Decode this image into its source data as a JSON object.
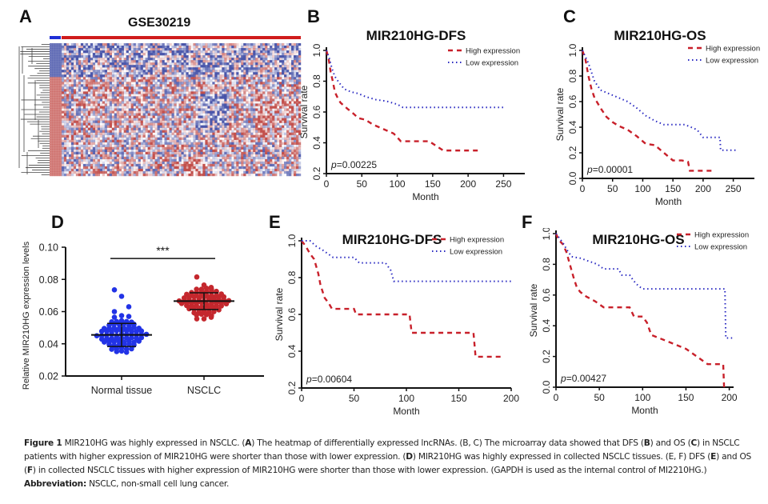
{
  "panels": {
    "A": {
      "label": "A",
      "title": "GSE30219",
      "legend_bar": {
        "normal_color": "#1f2fd6",
        "tumor_color": "#d01c1c"
      }
    },
    "B": {
      "label": "B"
    },
    "C": {
      "label": "C"
    },
    "D": {
      "label": "D"
    },
    "E": {
      "label": "E"
    },
    "F": {
      "label": "F"
    }
  },
  "colors": {
    "high": "#c8202a",
    "low": "#2b2bc2",
    "normal_dots": "#2233e6",
    "nsclc_dots": "#c4272d"
  },
  "chart_data": [
    {
      "id": "A",
      "type": "heatmap",
      "title": "GSE30219",
      "description": "Heatmap of differentially expressed lncRNAs with row dendrogram; group bar: normal (blue, left) vs tumor (red)",
      "colorscale": [
        "#2b3a9c",
        "#ffffff",
        "#b8322e"
      ]
    },
    {
      "id": "B",
      "type": "line",
      "title": "MIR210HG-DFS",
      "xlabel": "Month",
      "ylabel": "Survival rate",
      "xlim": [
        0,
        280
      ],
      "ylim": [
        0.2,
        1.0
      ],
      "xticks": [
        0,
        50,
        100,
        150,
        200,
        250
      ],
      "yticks": [
        0.2,
        0.4,
        0.6,
        0.8,
        1.0
      ],
      "ytick_labels": [
        "0.2",
        "0.4",
        "0.6",
        "0.8",
        "1.0"
      ],
      "legend": [
        "High expression",
        "Low expression"
      ],
      "legend_position": "top-right",
      "annotation": "p=0.00225",
      "series": [
        {
          "name": "High expression",
          "style": "dashed",
          "x": [
            0,
            3,
            6,
            9,
            12,
            16,
            20,
            25,
            30,
            38,
            45,
            55,
            65,
            75,
            85,
            95,
            105,
            125,
            145,
            165,
            218
          ],
          "y": [
            1.0,
            0.95,
            0.86,
            0.8,
            0.73,
            0.69,
            0.66,
            0.64,
            0.62,
            0.59,
            0.56,
            0.55,
            0.52,
            0.5,
            0.48,
            0.46,
            0.41,
            0.41,
            0.41,
            0.35,
            0.35
          ]
        },
        {
          "name": "Low expression",
          "style": "dotted",
          "x": [
            0,
            4,
            8,
            12,
            18,
            25,
            35,
            45,
            55,
            70,
            85,
            100,
            108,
            150,
            252
          ],
          "y": [
            1.0,
            0.95,
            0.88,
            0.83,
            0.79,
            0.75,
            0.73,
            0.72,
            0.7,
            0.68,
            0.67,
            0.65,
            0.63,
            0.63,
            0.63
          ]
        }
      ]
    },
    {
      "id": "C",
      "type": "line",
      "title": "MIR210HG-OS",
      "xlabel": "Month",
      "ylabel": "Survival rate",
      "xlim": [
        0,
        285
      ],
      "ylim": [
        0.0,
        1.0
      ],
      "xticks": [
        0,
        50,
        100,
        150,
        200,
        250
      ],
      "yticks": [
        0.0,
        0.2,
        0.4,
        0.6,
        0.8,
        1.0
      ],
      "ytick_labels": [
        "0.0",
        "0.2",
        "0.4",
        "0.6",
        "0.8",
        "1.0"
      ],
      "legend": [
        "High expression",
        "Low expression"
      ],
      "legend_position": "top-right",
      "annotation": "p=0.00001",
      "series": [
        {
          "name": "High expression",
          "style": "dashed",
          "x": [
            0,
            5,
            10,
            15,
            20,
            30,
            40,
            50,
            60,
            75,
            90,
            105,
            120,
            135,
            150,
            165,
            175,
            178,
            218
          ],
          "y": [
            1.0,
            0.93,
            0.8,
            0.7,
            0.63,
            0.55,
            0.48,
            0.44,
            0.41,
            0.38,
            0.33,
            0.27,
            0.26,
            0.2,
            0.14,
            0.14,
            0.13,
            0.06,
            0.06
          ]
        },
        {
          "name": "Low expression",
          "style": "dotted",
          "x": [
            0,
            5,
            10,
            20,
            30,
            45,
            60,
            75,
            90,
            105,
            120,
            135,
            150,
            170,
            190,
            200,
            228,
            229,
            255
          ],
          "y": [
            1.0,
            0.95,
            0.9,
            0.76,
            0.69,
            0.66,
            0.63,
            0.6,
            0.55,
            0.49,
            0.45,
            0.42,
            0.42,
            0.42,
            0.38,
            0.32,
            0.32,
            0.22,
            0.22
          ]
        }
      ]
    },
    {
      "id": "D",
      "type": "scatter",
      "title": "",
      "xlabel": "",
      "ylabel": "Relative MIR210HG expression levels",
      "categories": [
        "Normal tissue",
        "NSCLC"
      ],
      "ylim": [
        0.02,
        0.1
      ],
      "yticks": [
        0.02,
        0.04,
        0.06,
        0.08,
        0.1
      ],
      "ytick_labels": [
        "0.02",
        "0.04",
        "0.06",
        "0.08",
        "0.10"
      ],
      "annotation": "***",
      "series": [
        {
          "name": "Normal tissue",
          "mean": 0.0455,
          "sd": 0.0072
        },
        {
          "name": "NSCLC",
          "mean": 0.0665,
          "sd": 0.0052
        }
      ]
    },
    {
      "id": "E",
      "type": "line",
      "title": "MIR210HG-DFS",
      "xlabel": "Month",
      "ylabel": "Survival rate",
      "xlim": [
        0,
        200
      ],
      "ylim": [
        0.2,
        1.0
      ],
      "xticks": [
        0,
        50,
        100,
        150,
        200
      ],
      "yticks": [
        0.2,
        0.4,
        0.6,
        0.8,
        1.0
      ],
      "ytick_labels": [
        "0.2",
        "0.4",
        "0.6",
        "0.8",
        "1.0"
      ],
      "legend": [
        "High expression",
        "Low expression"
      ],
      "legend_position": "top-right",
      "annotation": "p=0.00604",
      "series": [
        {
          "name": "High expression",
          "style": "dashed",
          "x": [
            0,
            4,
            8,
            12,
            16,
            18,
            22,
            26,
            29,
            50,
            52,
            103,
            105,
            164,
            166,
            193
          ],
          "y": [
            1.0,
            0.97,
            0.93,
            0.9,
            0.82,
            0.76,
            0.69,
            0.66,
            0.63,
            0.63,
            0.6,
            0.6,
            0.5,
            0.5,
            0.37,
            0.37
          ]
        },
        {
          "name": "Low expression",
          "style": "dotted",
          "x": [
            0,
            8,
            14,
            20,
            25,
            30,
            50,
            55,
            80,
            85,
            88,
            200
          ],
          "y": [
            1.0,
            1.0,
            0.97,
            0.95,
            0.93,
            0.91,
            0.91,
            0.88,
            0.88,
            0.84,
            0.78,
            0.78
          ]
        }
      ]
    },
    {
      "id": "F",
      "type": "line",
      "title": "MIR210HG-OS",
      "xlabel": "Month",
      "ylabel": "Survival rate",
      "xlim": [
        0,
        205
      ],
      "ylim": [
        0.0,
        1.0
      ],
      "xticks": [
        0,
        50,
        100,
        150,
        200
      ],
      "yticks": [
        0.0,
        0.2,
        0.4,
        0.6,
        0.8,
        1.0
      ],
      "ytick_labels": [
        "0.0",
        "0.2",
        "0.4",
        "0.6",
        "0.8",
        "1.0"
      ],
      "legend": [
        "High expression",
        "Low expression"
      ],
      "legend_position": "top-right",
      "annotation": "p=0.00427",
      "series": [
        {
          "name": "High expression",
          "style": "dashed",
          "x": [
            0,
            3,
            8,
            12,
            16,
            20,
            24,
            28,
            35,
            45,
            55,
            85,
            90,
            100,
            105,
            110,
            128,
            150,
            175,
            193,
            194
          ],
          "y": [
            1.0,
            0.96,
            0.93,
            0.88,
            0.8,
            0.72,
            0.65,
            0.62,
            0.59,
            0.56,
            0.52,
            0.52,
            0.46,
            0.46,
            0.42,
            0.34,
            0.3,
            0.25,
            0.15,
            0.15,
            0.0
          ]
        },
        {
          "name": "Low expression",
          "style": "dotted",
          "x": [
            0,
            8,
            12,
            18,
            28,
            38,
            48,
            55,
            72,
            76,
            85,
            90,
            95,
            100,
            195,
            196,
            205
          ],
          "y": [
            1.0,
            0.94,
            0.9,
            0.85,
            0.84,
            0.82,
            0.8,
            0.77,
            0.77,
            0.73,
            0.73,
            0.69,
            0.66,
            0.64,
            0.64,
            0.32,
            0.32
          ]
        }
      ]
    }
  ],
  "caption": {
    "figure_label": "Figure 1",
    "part1": " MIR210HG was highly expressed in NSCLC. (",
    "A": "A",
    "part2": ") The heatmap of differentially expressed lncRNAs. (B, C) The microarray data showed that DFS (",
    "B": "B",
    "part3": ") and OS (",
    "C": "C",
    "part4": ") in NSCLC patients with higher expression of MIR210HG were shorter than those with lower expression. (",
    "D": "D",
    "part5": ") MIR210HG was highly expressed in collected NSCLC tissues. (E, F) DFS (",
    "E": "E",
    "part6": ") and OS (",
    "F": "F",
    "part7": ") in collected NSCLC tissues with higher expression of MIR210HG were shorter than those with lower expression. (GAPDH is used as the internal control of MI2210HG.)",
    "abbrev_label": "Abbreviation:",
    "abbrev_text": " NSCLC, non-small cell lung cancer."
  }
}
